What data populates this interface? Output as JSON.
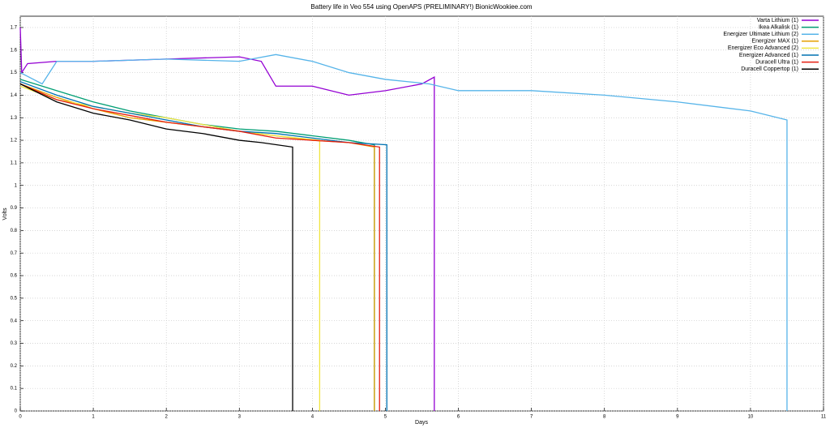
{
  "chart_data": {
    "type": "line",
    "title": "Battery life in Veo 554 using OpenAPS (PRELIMINARY!) BionicWookiee.com",
    "x_label": "Days",
    "y_label": "Volts",
    "xlim": [
      0,
      11
    ],
    "xticks": [
      0,
      1,
      2,
      3,
      4,
      5,
      6,
      7,
      8,
      9,
      10,
      11
    ],
    "ylim": [
      0,
      1.75
    ],
    "yticks": [
      0,
      0.1,
      0.2,
      0.3,
      0.4,
      0.5,
      0.6,
      0.7,
      0.8,
      0.9,
      1,
      1.1,
      1.2,
      1.3,
      1.4,
      1.5,
      1.6,
      1.7
    ],
    "grid": true,
    "legend": "top-right",
    "series": [
      {
        "name": "Varta Lithium (1)",
        "color": "#9400d3",
        "x": [
          0,
          0.02,
          0.1,
          0.5,
          1,
          2,
          3,
          3.3,
          3.5,
          4,
          4.5,
          5,
          5.5,
          5.67,
          5.67
        ],
        "values": [
          1.7,
          1.5,
          1.54,
          1.55,
          1.55,
          1.56,
          1.57,
          1.55,
          1.44,
          1.44,
          1.4,
          1.42,
          1.45,
          1.48,
          0
        ]
      },
      {
        "name": "Ikea Alkalisk (1)",
        "color": "#009e73",
        "x": [
          0,
          0.5,
          1,
          1.5,
          2,
          2.5,
          3,
          3.5,
          4,
          4.5,
          4.85,
          4.85
        ],
        "values": [
          1.47,
          1.42,
          1.37,
          1.33,
          1.3,
          1.27,
          1.25,
          1.24,
          1.22,
          1.2,
          1.18,
          0
        ]
      },
      {
        "name": "Energizer Ultimate Lithium (2)",
        "color": "#56b4e9",
        "x": [
          0,
          0.3,
          0.5,
          1,
          2,
          3,
          3.5,
          4,
          4.5,
          5,
          5.6,
          6,
          7,
          8,
          9,
          10,
          10.5,
          10.5
        ],
        "values": [
          1.5,
          1.45,
          1.55,
          1.55,
          1.56,
          1.55,
          1.58,
          1.55,
          1.5,
          1.47,
          1.45,
          1.42,
          1.42,
          1.4,
          1.37,
          1.33,
          1.29,
          0
        ]
      },
      {
        "name": "Energizer MAX (1)",
        "color": "#e69f00",
        "x": [
          0,
          0.5,
          1,
          1.5,
          2,
          2.5,
          3,
          3.5,
          4,
          4.5,
          4.85,
          4.85
        ],
        "values": [
          1.45,
          1.39,
          1.34,
          1.3,
          1.28,
          1.26,
          1.24,
          1.22,
          1.2,
          1.19,
          1.17,
          0
        ]
      },
      {
        "name": "Energizer Eco Advanced (2)",
        "color": "#f0e442",
        "x": [
          0,
          0.5,
          1,
          1.5,
          2,
          2.5,
          3,
          3.5,
          4.1,
          4.1
        ],
        "values": [
          1.44,
          1.38,
          1.35,
          1.32,
          1.3,
          1.27,
          1.24,
          1.22,
          1.2,
          0
        ]
      },
      {
        "name": "Energizer Advanced (1)",
        "color": "#0072b2",
        "x": [
          0,
          0.5,
          1,
          1.5,
          2,
          2.5,
          3,
          3.5,
          4,
          4.5,
          5.02,
          5.02
        ],
        "values": [
          1.46,
          1.4,
          1.35,
          1.32,
          1.29,
          1.26,
          1.24,
          1.23,
          1.21,
          1.19,
          1.18,
          0
        ]
      },
      {
        "name": "Duracell Ultra (1)",
        "color": "#e51e10",
        "x": [
          0,
          0.5,
          1,
          1.5,
          2,
          2.5,
          3,
          3.5,
          4,
          4.5,
          4.92,
          4.92
        ],
        "values": [
          1.45,
          1.38,
          1.34,
          1.31,
          1.28,
          1.26,
          1.24,
          1.21,
          1.2,
          1.19,
          1.17,
          0
        ]
      },
      {
        "name": "Duracell Coppertop (1)",
        "color": "#000000",
        "x": [
          0,
          0.5,
          1,
          1.5,
          2,
          2.5,
          3,
          3.3,
          3.73,
          3.73
        ],
        "values": [
          1.45,
          1.37,
          1.32,
          1.29,
          1.25,
          1.23,
          1.2,
          1.19,
          1.17,
          0
        ]
      }
    ]
  }
}
